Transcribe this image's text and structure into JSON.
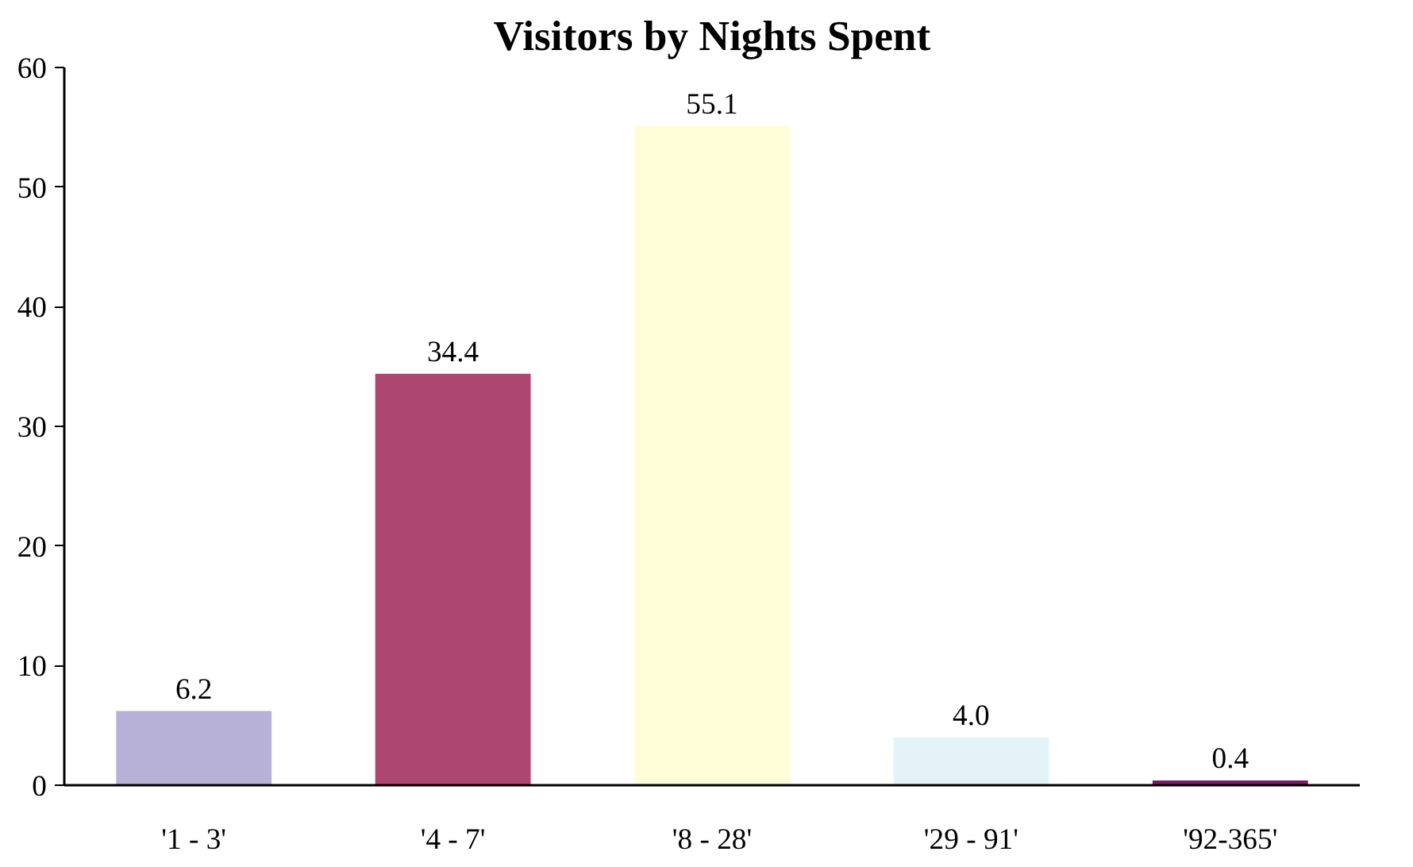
{
  "chart_data": {
    "type": "bar",
    "title": "Visitors by Nights Spent",
    "categories": [
      "'1 - 3'",
      "'4 - 7'",
      "'8 - 28'",
      "'29 - 91'",
      "'92-365'"
    ],
    "values": [
      6.2,
      34.4,
      55.1,
      4.0,
      0.4
    ],
    "value_labels": [
      "6.2",
      "34.4",
      "55.1",
      "4.0",
      "0.4"
    ],
    "colors": [
      "#b7b1d7",
      "#ad4670",
      "#fffcd8",
      "#e4f3f8",
      "#7b1a6a"
    ],
    "ylim": [
      0,
      60
    ],
    "yticks": [
      0,
      10,
      20,
      30,
      40,
      50,
      60
    ],
    "grid": false
  }
}
